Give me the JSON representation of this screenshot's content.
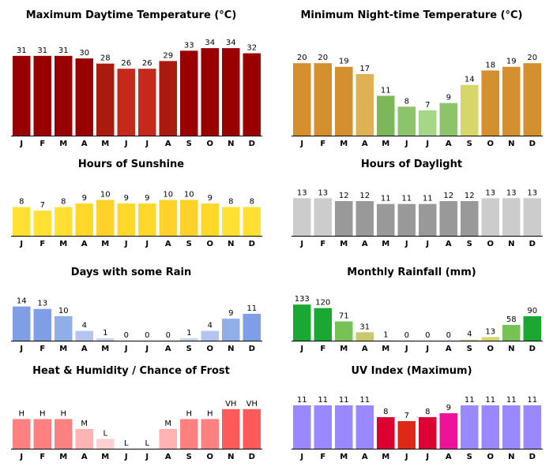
{
  "months": [
    "J",
    "F",
    "M",
    "A",
    "M",
    "J",
    "J",
    "A",
    "S",
    "O",
    "N",
    "D"
  ],
  "chart_data": [
    {
      "id": "max-temp",
      "type": "bar",
      "title": "Maximum Daytime Temperature (°C)",
      "categories": [
        "J",
        "F",
        "M",
        "A",
        "M",
        "J",
        "J",
        "A",
        "S",
        "O",
        "N",
        "D"
      ],
      "values": [
        31,
        31,
        31,
        30,
        28,
        26,
        26,
        29,
        33,
        34,
        34,
        32
      ],
      "labels": [
        "31",
        "31",
        "31",
        "30",
        "28",
        "26",
        "26",
        "29",
        "33",
        "34",
        "34",
        "32"
      ],
      "colors": [
        "#990000",
        "#990000",
        "#990000",
        "#990000",
        "#aa1a0e",
        "#c4291c",
        "#c4291c",
        "#aa1a0e",
        "#990000",
        "#990000",
        "#990000",
        "#990000"
      ],
      "ylim": [
        0,
        38
      ]
    },
    {
      "id": "min-temp",
      "type": "bar",
      "title": "Minimum Night-time Temperature (°C)",
      "categories": [
        "J",
        "F",
        "M",
        "A",
        "M",
        "J",
        "J",
        "A",
        "S",
        "O",
        "N",
        "D"
      ],
      "values": [
        20,
        20,
        19,
        17,
        11,
        8,
        7,
        9,
        14,
        18,
        19,
        20
      ],
      "labels": [
        "20",
        "20",
        "19",
        "17",
        "11",
        "8",
        "7",
        "9",
        "14",
        "18",
        "19",
        "20"
      ],
      "colors": [
        "#d4902e",
        "#d4902e",
        "#d4902e",
        "#e0b055",
        "#7cb85a",
        "#8dc36a",
        "#a5d886",
        "#8dc36a",
        "#d6d66a",
        "#d4902e",
        "#d4902e",
        "#d4902e"
      ],
      "ylim": [
        0,
        27
      ]
    },
    {
      "id": "sunshine",
      "type": "bar",
      "title": "Hours of Sunshine",
      "categories": [
        "J",
        "F",
        "M",
        "A",
        "M",
        "J",
        "J",
        "A",
        "S",
        "O",
        "N",
        "D"
      ],
      "values": [
        8,
        7,
        8,
        9,
        10,
        9,
        9,
        10,
        10,
        9,
        8,
        8
      ],
      "labels": [
        "8",
        "7",
        "8",
        "9",
        "10",
        "9",
        "9",
        "10",
        "10",
        "9",
        "8",
        "8"
      ],
      "colors": [
        "#ffe033",
        "#ffe033",
        "#ffe033",
        "#ffd82a",
        "#ffd22a",
        "#ffd82a",
        "#ffd82a",
        "#ffd22a",
        "#ffd22a",
        "#ffd82a",
        "#ffe033",
        "#ffe033"
      ],
      "ylim": [
        0,
        14.5
      ]
    },
    {
      "id": "daylight",
      "type": "bar",
      "title": "Hours of Daylight",
      "categories": [
        "J",
        "F",
        "M",
        "A",
        "M",
        "J",
        "J",
        "A",
        "S",
        "O",
        "N",
        "D"
      ],
      "values": [
        13,
        13,
        12,
        12,
        11,
        11,
        11,
        12,
        12,
        13,
        13,
        13
      ],
      "labels": [
        "13",
        "13",
        "12",
        "12",
        "11",
        "11",
        "11",
        "12",
        "12",
        "13",
        "13",
        "13"
      ],
      "colors": [
        "#cccccc",
        "#cccccc",
        "#999999",
        "#999999",
        "#999999",
        "#999999",
        "#999999",
        "#999999",
        "#999999",
        "#cccccc",
        "#cccccc",
        "#cccccc"
      ],
      "ylim": [
        0,
        18
      ]
    },
    {
      "id": "rain-days",
      "type": "bar",
      "title": "Days with some Rain",
      "categories": [
        "J",
        "F",
        "M",
        "A",
        "M",
        "J",
        "J",
        "A",
        "S",
        "O",
        "N",
        "D"
      ],
      "values": [
        14,
        13,
        10,
        4,
        1,
        0,
        0,
        0,
        1,
        4,
        9,
        11
      ],
      "labels": [
        "14",
        "13",
        "10",
        "4",
        "1",
        "0",
        "0",
        "0",
        "1",
        "4",
        "9",
        "11"
      ],
      "colors": [
        "#7f9ee6",
        "#7f9ee6",
        "#90aee8",
        "#b4c4f0",
        "#c8d4f4",
        "#c8d4f4",
        "#c8d4f4",
        "#c8d4f4",
        "#c8d4f4",
        "#b4c4f0",
        "#90aee8",
        "#7f9ee6"
      ],
      "ylim": [
        0,
        20
      ]
    },
    {
      "id": "rainfall",
      "type": "bar",
      "title": "Monthly Rainfall (mm)",
      "categories": [
        "J",
        "F",
        "M",
        "A",
        "M",
        "J",
        "J",
        "A",
        "S",
        "O",
        "N",
        "D"
      ],
      "values": [
        133,
        120,
        71,
        31,
        1,
        0,
        0,
        0,
        4,
        13,
        58,
        90
      ],
      "labels": [
        "133",
        "120",
        "71",
        "31",
        "1",
        "0",
        "0",
        "0",
        "4",
        "13",
        "58",
        "90"
      ],
      "colors": [
        "#1aa833",
        "#1aa833",
        "#77c255",
        "#c8c86e",
        "#d8d8a0",
        "#d8d8a0",
        "#d8d8a0",
        "#d8d8a0",
        "#d8d8a0",
        "#d6d66a",
        "#77c255",
        "#1aa833"
      ],
      "ylim": [
        0,
        180
      ]
    },
    {
      "id": "humidity",
      "type": "bar",
      "title": "Heat & Humidity / Chance of Frost",
      "categories": [
        "J",
        "F",
        "M",
        "A",
        "M",
        "J",
        "J",
        "A",
        "S",
        "O",
        "N",
        "D"
      ],
      "values": [
        3,
        3,
        3,
        2,
        1,
        0,
        0,
        2,
        3,
        3,
        4,
        4
      ],
      "labels": [
        "H",
        "H",
        "H",
        "M",
        "L",
        "L",
        "L",
        "M",
        "H",
        "H",
        "VH",
        "VH"
      ],
      "colors": [
        "#ff8080",
        "#ff8080",
        "#ff8080",
        "#ffb3b3",
        "#ffd0d0",
        "#ffd0d0",
        "#ffd0d0",
        "#ffb3b3",
        "#ff8080",
        "#ff8080",
        "#ff5a5a",
        "#ff5a5a"
      ],
      "ylim": [
        0,
        5.9
      ]
    },
    {
      "id": "uv",
      "type": "bar",
      "title": "UV Index (Maximum)",
      "categories": [
        "J",
        "F",
        "M",
        "A",
        "M",
        "J",
        "J",
        "A",
        "S",
        "O",
        "N",
        "D"
      ],
      "values": [
        11,
        11,
        11,
        11,
        8,
        7,
        8,
        9,
        11,
        11,
        11,
        11
      ],
      "labels": [
        "11",
        "11",
        "11",
        "11",
        "8",
        "7",
        "8",
        "9",
        "11",
        "11",
        "11",
        "11"
      ],
      "colors": [
        "#9988ff",
        "#9988ff",
        "#9988ff",
        "#9988ff",
        "#dd0033",
        "#e02818",
        "#dd0033",
        "#ee1199",
        "#9988ff",
        "#9988ff",
        "#9988ff",
        "#9988ff"
      ],
      "ylim": [
        0,
        14.8
      ]
    }
  ]
}
